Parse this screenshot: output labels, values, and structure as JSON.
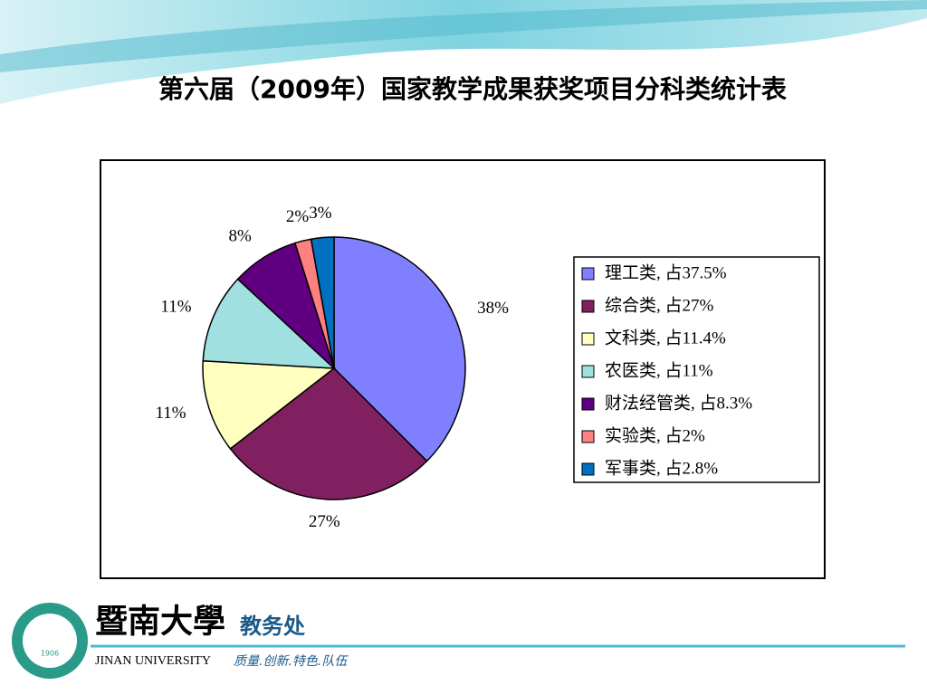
{
  "chart_data": {
    "type": "pie",
    "title": "第六届（2009年）国家教学成果获奖项目分科类统计表",
    "categories": [
      "理工类, 占37.5%",
      "综合类, 占27%",
      "文科类, 占11.4%",
      "农医类, 占11%",
      "财法经管类, 占8.3%",
      "实验类, 占2%",
      "军事类, 占2.8%"
    ],
    "values": [
      37.5,
      27,
      11.4,
      11,
      8.3,
      2,
      2.8
    ],
    "value_labels": [
      "38%",
      "27%",
      "11%",
      "11%",
      "8%",
      "2%",
      "3%"
    ],
    "colors": [
      "#8080ff",
      "#802060",
      "#ffffc0",
      "#a0e0e0",
      "#600080",
      "#ff8080",
      "#0070c0"
    ],
    "legend": "right"
  },
  "footer": {
    "logo_year": "1906",
    "university": "暨南大學",
    "department": "教务处",
    "english": "JINAN UNIVERSITY",
    "motto": "质量.创新.特色.队伍"
  }
}
